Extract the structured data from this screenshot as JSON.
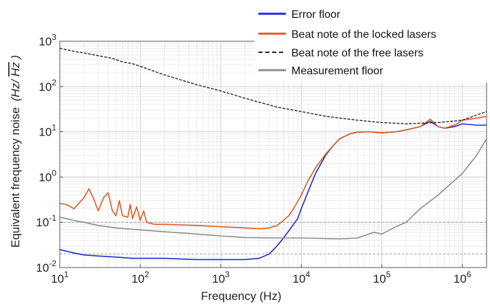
{
  "chart_data": {
    "type": "line",
    "xlabel": "Frequency (Hz)",
    "ylabel_prefix": "Equivalent frequency noise",
    "ylabel_units_pre": "(Hz/",
    "ylabel_units_rad": "Hz",
    "ylabel_units_post": ")",
    "x_scale": "log",
    "y_scale": "log",
    "xlim": [
      10,
      2000000
    ],
    "ylim": [
      0.01,
      1000
    ],
    "x_ticks": [
      {
        "base": "10",
        "exp": "1",
        "value": 10
      },
      {
        "base": "10",
        "exp": "2",
        "value": 100
      },
      {
        "base": "10",
        "exp": "3",
        "value": 1000
      },
      {
        "base": "10",
        "exp": "4",
        "value": 10000
      },
      {
        "base": "10",
        "exp": "5",
        "value": 100000
      },
      {
        "base": "10",
        "exp": "6",
        "value": 1000000
      }
    ],
    "y_ticks": [
      {
        "base": "10",
        "exp": "-2",
        "value": 0.01
      },
      {
        "base": "10",
        "exp": "-1",
        "value": 0.1
      },
      {
        "base": "10",
        "exp": "0",
        "value": 1
      },
      {
        "base": "10",
        "exp": "1",
        "value": 10
      },
      {
        "base": "10",
        "exp": "2",
        "value": 100
      },
      {
        "base": "10",
        "exp": "3",
        "value": 1000
      }
    ],
    "grid": true,
    "legend_position": "top-right",
    "reference_lines_y": [
      0.1,
      0.02
    ],
    "series": [
      {
        "name": "Error floor",
        "color": "#1a2bd6",
        "dash": "solid",
        "points": [
          [
            10,
            0.025
          ],
          [
            15,
            0.021
          ],
          [
            20,
            0.019
          ],
          [
            30,
            0.018
          ],
          [
            50,
            0.017
          ],
          [
            80,
            0.016
          ],
          [
            100,
            0.016
          ],
          [
            200,
            0.016
          ],
          [
            500,
            0.015
          ],
          [
            1000,
            0.015
          ],
          [
            2000,
            0.015
          ],
          [
            3000,
            0.016
          ],
          [
            4000,
            0.02
          ],
          [
            5000,
            0.03
          ],
          [
            6000,
            0.045
          ],
          [
            7000,
            0.065
          ],
          [
            8000,
            0.09
          ],
          [
            9000,
            0.12
          ],
          [
            10000,
            0.2
          ],
          [
            12000,
            0.45
          ],
          [
            15000,
            1.2
          ],
          [
            20000,
            3
          ],
          [
            25000,
            5
          ],
          [
            30000,
            7
          ],
          [
            40000,
            9
          ],
          [
            50000,
            9.8
          ],
          [
            70000,
            10
          ],
          [
            100000,
            9.5
          ],
          [
            150000,
            10
          ],
          [
            200000,
            11
          ],
          [
            300000,
            13
          ],
          [
            400000,
            17
          ],
          [
            500000,
            13
          ],
          [
            600000,
            12
          ],
          [
            800000,
            13
          ],
          [
            1000000,
            15
          ],
          [
            1500000,
            14
          ],
          [
            2000000,
            14
          ]
        ]
      },
      {
        "name": "Beat note of the locked lasers",
        "color": "#e05a1e",
        "dash": "solid",
        "points": [
          [
            10,
            0.26
          ],
          [
            12,
            0.25
          ],
          [
            15,
            0.2
          ],
          [
            20,
            0.35
          ],
          [
            23,
            0.55
          ],
          [
            26,
            0.35
          ],
          [
            30,
            0.18
          ],
          [
            35,
            0.35
          ],
          [
            40,
            0.45
          ],
          [
            45,
            0.18
          ],
          [
            50,
            0.14
          ],
          [
            55,
            0.3
          ],
          [
            60,
            0.14
          ],
          [
            70,
            0.13
          ],
          [
            75,
            0.25
          ],
          [
            80,
            0.12
          ],
          [
            90,
            0.22
          ],
          [
            100,
            0.11
          ],
          [
            110,
            0.18
          ],
          [
            120,
            0.1
          ],
          [
            150,
            0.09
          ],
          [
            200,
            0.09
          ],
          [
            500,
            0.085
          ],
          [
            1000,
            0.08
          ],
          [
            2000,
            0.075
          ],
          [
            3000,
            0.072
          ],
          [
            4000,
            0.075
          ],
          [
            5000,
            0.085
          ],
          [
            6000,
            0.11
          ],
          [
            7000,
            0.14
          ],
          [
            8000,
            0.2
          ],
          [
            10000,
            0.4
          ],
          [
            12000,
            0.8
          ],
          [
            15000,
            1.6
          ],
          [
            20000,
            3.2
          ],
          [
            25000,
            5
          ],
          [
            30000,
            7
          ],
          [
            40000,
            9
          ],
          [
            50000,
            9.8
          ],
          [
            70000,
            10
          ],
          [
            100000,
            9.5
          ],
          [
            150000,
            10
          ],
          [
            200000,
            11
          ],
          [
            300000,
            13
          ],
          [
            400000,
            19
          ],
          [
            500000,
            13
          ],
          [
            600000,
            12
          ],
          [
            800000,
            14
          ],
          [
            1000000,
            18
          ],
          [
            1500000,
            20
          ],
          [
            2000000,
            22
          ]
        ]
      },
      {
        "name": "Beat note of the free lasers",
        "color": "#222222",
        "dash": "dashed",
        "points": [
          [
            10,
            700
          ],
          [
            15,
            600
          ],
          [
            20,
            550
          ],
          [
            30,
            480
          ],
          [
            45,
            420
          ],
          [
            60,
            350
          ],
          [
            80,
            320
          ],
          [
            100,
            280
          ],
          [
            200,
            180
          ],
          [
            500,
            110
          ],
          [
            1000,
            80
          ],
          [
            2000,
            55
          ],
          [
            5000,
            35
          ],
          [
            10000,
            28
          ],
          [
            20000,
            22
          ],
          [
            50000,
            18
          ],
          [
            100000,
            16
          ],
          [
            200000,
            15
          ],
          [
            500000,
            16
          ],
          [
            1000000,
            18
          ],
          [
            2000000,
            28
          ]
        ]
      },
      {
        "name": "Measurement floor",
        "color": "#8c8c8c",
        "dash": "solid",
        "points": [
          [
            10,
            0.13
          ],
          [
            15,
            0.11
          ],
          [
            20,
            0.1
          ],
          [
            30,
            0.085
          ],
          [
            50,
            0.075
          ],
          [
            100,
            0.068
          ],
          [
            200,
            0.062
          ],
          [
            500,
            0.055
          ],
          [
            1000,
            0.05
          ],
          [
            2000,
            0.046
          ],
          [
            5000,
            0.045
          ],
          [
            10000,
            0.045
          ],
          [
            20000,
            0.044
          ],
          [
            30000,
            0.043
          ],
          [
            50000,
            0.045
          ],
          [
            80000,
            0.06
          ],
          [
            100000,
            0.055
          ],
          [
            150000,
            0.08
          ],
          [
            200000,
            0.1
          ],
          [
            300000,
            0.2
          ],
          [
            500000,
            0.4
          ],
          [
            1000000,
            1.2
          ],
          [
            1500000,
            3
          ],
          [
            2000000,
            7
          ]
        ]
      }
    ]
  }
}
